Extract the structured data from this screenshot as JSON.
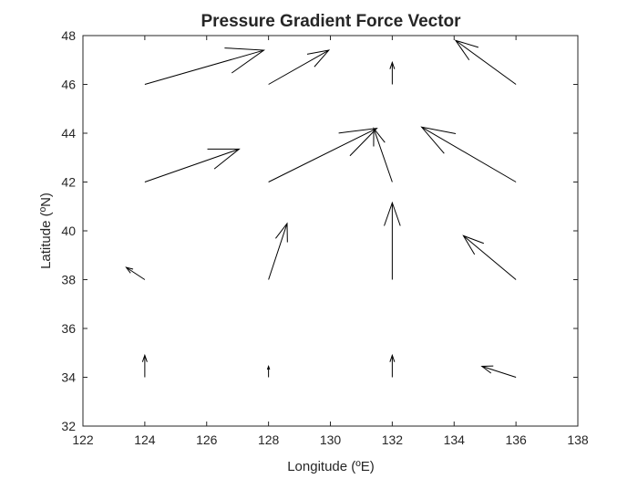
{
  "chart_data": {
    "type": "quiver",
    "title": "Pressure Gradient Force Vector",
    "xlabel": "Longitude (ºE)",
    "ylabel": "Latitude (ºN)",
    "xlim": [
      122,
      138
    ],
    "ylim": [
      32,
      48
    ],
    "xticks": [
      122,
      124,
      126,
      128,
      130,
      132,
      134,
      136,
      138
    ],
    "yticks": [
      32,
      34,
      36,
      38,
      40,
      42,
      44,
      46,
      48
    ],
    "grid": false,
    "vectors": [
      {
        "x": 124,
        "y": 46,
        "u": 3.85,
        "v": 1.4
      },
      {
        "x": 128,
        "y": 46,
        "u": 1.95,
        "v": 1.4
      },
      {
        "x": 132,
        "y": 46,
        "u": 0.0,
        "v": 0.9
      },
      {
        "x": 136,
        "y": 46,
        "u": -1.95,
        "v": 1.8
      },
      {
        "x": 124,
        "y": 42,
        "u": 3.05,
        "v": 1.35
      },
      {
        "x": 128,
        "y": 42,
        "u": 3.5,
        "v": 2.2
      },
      {
        "x": 132,
        "y": 42,
        "u": -0.6,
        "v": 2.2
      },
      {
        "x": 136,
        "y": 42,
        "u": -3.05,
        "v": 2.25
      },
      {
        "x": 124,
        "y": 38,
        "u": -0.6,
        "v": 0.5
      },
      {
        "x": 128,
        "y": 38,
        "u": 0.6,
        "v": 2.3
      },
      {
        "x": 132,
        "y": 38,
        "u": 0.0,
        "v": 3.15
      },
      {
        "x": 136,
        "y": 38,
        "u": -1.7,
        "v": 1.8
      },
      {
        "x": 124,
        "y": 34,
        "u": 0.0,
        "v": 0.9
      },
      {
        "x": 128,
        "y": 34,
        "u": 0.0,
        "v": 0.45
      },
      {
        "x": 132,
        "y": 34,
        "u": 0.0,
        "v": 0.9
      },
      {
        "x": 136,
        "y": 34,
        "u": -1.1,
        "v": 0.45
      }
    ]
  }
}
